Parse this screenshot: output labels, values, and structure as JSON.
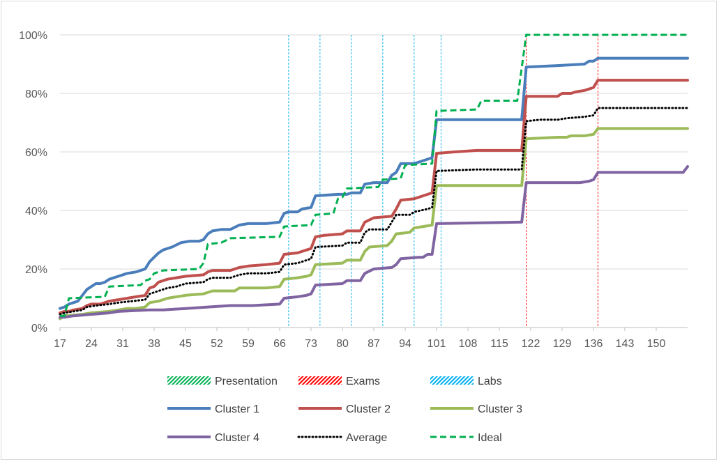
{
  "chart_data": {
    "type": "line",
    "title": "",
    "xlabel": "",
    "ylabel": "",
    "xlim": [
      17,
      157
    ],
    "ylim": [
      0,
      1
    ],
    "y_ticks": [
      "0%",
      "20%",
      "40%",
      "60%",
      "80%",
      "100%"
    ],
    "x_ticks": [
      "17",
      "24",
      "31",
      "38",
      "45",
      "52",
      "59",
      "66",
      "73",
      "80",
      "87",
      "94",
      "101",
      "108",
      "115",
      "122",
      "129",
      "136",
      "143",
      "150"
    ],
    "grid": "horizontal",
    "legend_position": "bottom",
    "markers": [
      {
        "name": "Presentation",
        "color": "#00b050",
        "positions": []
      },
      {
        "name": "Exams",
        "color": "#ff0000",
        "positions": [
          121,
          137
        ]
      },
      {
        "name": "Labs",
        "color": "#00b0f0",
        "positions": [
          68,
          75,
          82,
          89,
          96,
          102
        ]
      }
    ],
    "series": [
      {
        "name": "Cluster 1",
        "color": "#4a7ebb",
        "style": "solid",
        "points": [
          [
            17,
            0.065
          ],
          [
            18,
            0.07
          ],
          [
            19,
            0.08
          ],
          [
            20,
            0.085
          ],
          [
            21,
            0.09
          ],
          [
            22,
            0.11
          ],
          [
            23,
            0.13
          ],
          [
            24,
            0.14
          ],
          [
            25,
            0.15
          ],
          [
            26,
            0.15
          ],
          [
            27,
            0.155
          ],
          [
            28,
            0.165
          ],
          [
            30,
            0.175
          ],
          [
            32,
            0.185
          ],
          [
            34,
            0.19
          ],
          [
            36,
            0.2
          ],
          [
            37,
            0.225
          ],
          [
            38,
            0.24
          ],
          [
            39,
            0.255
          ],
          [
            40,
            0.265
          ],
          [
            42,
            0.275
          ],
          [
            44,
            0.29
          ],
          [
            46,
            0.295
          ],
          [
            48,
            0.295
          ],
          [
            49,
            0.3
          ],
          [
            50,
            0.32
          ],
          [
            51,
            0.33
          ],
          [
            53,
            0.335
          ],
          [
            55,
            0.335
          ],
          [
            57,
            0.35
          ],
          [
            59,
            0.355
          ],
          [
            63,
            0.355
          ],
          [
            66,
            0.36
          ],
          [
            67,
            0.39
          ],
          [
            68,
            0.395
          ],
          [
            70,
            0.395
          ],
          [
            71,
            0.405
          ],
          [
            73,
            0.41
          ],
          [
            74,
            0.45
          ],
          [
            79,
            0.455
          ],
          [
            81,
            0.455
          ],
          [
            82,
            0.46
          ],
          [
            84,
            0.46
          ],
          [
            85,
            0.49
          ],
          [
            87,
            0.495
          ],
          [
            90,
            0.495
          ],
          [
            91,
            0.52
          ],
          [
            92,
            0.53
          ],
          [
            93,
            0.56
          ],
          [
            96,
            0.56
          ],
          [
            98,
            0.57
          ],
          [
            99,
            0.575
          ],
          [
            100,
            0.58
          ],
          [
            101,
            0.71
          ],
          [
            120,
            0.71
          ],
          [
            121,
            0.89
          ],
          [
            128,
            0.895
          ],
          [
            134,
            0.9
          ],
          [
            135,
            0.91
          ],
          [
            136,
            0.91
          ],
          [
            137,
            0.92
          ],
          [
            157,
            0.92
          ]
        ]
      },
      {
        "name": "Cluster 2",
        "color": "#c0504d",
        "style": "solid",
        "points": [
          [
            17,
            0.05
          ],
          [
            18,
            0.055
          ],
          [
            19,
            0.055
          ],
          [
            20,
            0.06
          ],
          [
            22,
            0.065
          ],
          [
            23,
            0.075
          ],
          [
            24,
            0.08
          ],
          [
            26,
            0.08
          ],
          [
            27,
            0.085
          ],
          [
            28,
            0.09
          ],
          [
            30,
            0.095
          ],
          [
            32,
            0.1
          ],
          [
            34,
            0.105
          ],
          [
            36,
            0.11
          ],
          [
            37,
            0.135
          ],
          [
            38,
            0.14
          ],
          [
            39,
            0.155
          ],
          [
            41,
            0.165
          ],
          [
            43,
            0.17
          ],
          [
            45,
            0.175
          ],
          [
            49,
            0.18
          ],
          [
            50,
            0.19
          ],
          [
            51,
            0.195
          ],
          [
            55,
            0.195
          ],
          [
            56,
            0.2
          ],
          [
            57,
            0.205
          ],
          [
            59,
            0.21
          ],
          [
            63,
            0.215
          ],
          [
            66,
            0.22
          ],
          [
            67,
            0.25
          ],
          [
            70,
            0.255
          ],
          [
            72,
            0.265
          ],
          [
            73,
            0.27
          ],
          [
            74,
            0.31
          ],
          [
            76,
            0.315
          ],
          [
            80,
            0.32
          ],
          [
            81,
            0.33
          ],
          [
            84,
            0.33
          ],
          [
            85,
            0.36
          ],
          [
            87,
            0.375
          ],
          [
            91,
            0.38
          ],
          [
            92,
            0.405
          ],
          [
            93,
            0.435
          ],
          [
            96,
            0.44
          ],
          [
            98,
            0.45
          ],
          [
            99,
            0.455
          ],
          [
            100,
            0.46
          ],
          [
            101,
            0.595
          ],
          [
            105,
            0.6
          ],
          [
            110,
            0.605
          ],
          [
            120,
            0.605
          ],
          [
            121,
            0.79
          ],
          [
            128,
            0.79
          ],
          [
            129,
            0.8
          ],
          [
            131,
            0.8
          ],
          [
            132,
            0.805
          ],
          [
            134,
            0.81
          ],
          [
            136,
            0.82
          ],
          [
            137,
            0.845
          ],
          [
            157,
            0.845
          ]
        ]
      },
      {
        "name": "Cluster 3",
        "color": "#9bbb59",
        "style": "solid",
        "points": [
          [
            17,
            0.03
          ],
          [
            18,
            0.04
          ],
          [
            22,
            0.045
          ],
          [
            24,
            0.05
          ],
          [
            28,
            0.055
          ],
          [
            30,
            0.06
          ],
          [
            32,
            0.065
          ],
          [
            34,
            0.065
          ],
          [
            36,
            0.07
          ],
          [
            37,
            0.085
          ],
          [
            39,
            0.09
          ],
          [
            41,
            0.1
          ],
          [
            43,
            0.105
          ],
          [
            45,
            0.11
          ],
          [
            49,
            0.115
          ],
          [
            50,
            0.12
          ],
          [
            51,
            0.125
          ],
          [
            56,
            0.125
          ],
          [
            57,
            0.135
          ],
          [
            63,
            0.135
          ],
          [
            66,
            0.14
          ],
          [
            67,
            0.165
          ],
          [
            70,
            0.17
          ],
          [
            72,
            0.175
          ],
          [
            73,
            0.18
          ],
          [
            74,
            0.215
          ],
          [
            80,
            0.22
          ],
          [
            81,
            0.23
          ],
          [
            84,
            0.23
          ],
          [
            85,
            0.26
          ],
          [
            86,
            0.275
          ],
          [
            90,
            0.28
          ],
          [
            91,
            0.295
          ],
          [
            92,
            0.32
          ],
          [
            95,
            0.325
          ],
          [
            96,
            0.34
          ],
          [
            98,
            0.345
          ],
          [
            100,
            0.35
          ],
          [
            101,
            0.485
          ],
          [
            120,
            0.485
          ],
          [
            121,
            0.645
          ],
          [
            128,
            0.65
          ],
          [
            130,
            0.65
          ],
          [
            131,
            0.655
          ],
          [
            134,
            0.655
          ],
          [
            136,
            0.66
          ],
          [
            137,
            0.68
          ],
          [
            157,
            0.68
          ]
        ]
      },
      {
        "name": "Cluster 4",
        "color": "#8064a2",
        "style": "solid",
        "points": [
          [
            17,
            0.035
          ],
          [
            18,
            0.035
          ],
          [
            20,
            0.04
          ],
          [
            24,
            0.045
          ],
          [
            28,
            0.05
          ],
          [
            30,
            0.055
          ],
          [
            37,
            0.06
          ],
          [
            40,
            0.06
          ],
          [
            45,
            0.065
          ],
          [
            50,
            0.07
          ],
          [
            55,
            0.075
          ],
          [
            60,
            0.075
          ],
          [
            66,
            0.08
          ],
          [
            67,
            0.1
          ],
          [
            70,
            0.105
          ],
          [
            72,
            0.11
          ],
          [
            73,
            0.115
          ],
          [
            74,
            0.145
          ],
          [
            80,
            0.15
          ],
          [
            81,
            0.16
          ],
          [
            84,
            0.16
          ],
          [
            85,
            0.185
          ],
          [
            87,
            0.2
          ],
          [
            91,
            0.205
          ],
          [
            92,
            0.215
          ],
          [
            93,
            0.235
          ],
          [
            97,
            0.24
          ],
          [
            98,
            0.24
          ],
          [
            99,
            0.25
          ],
          [
            100,
            0.25
          ],
          [
            101,
            0.355
          ],
          [
            120,
            0.36
          ],
          [
            121,
            0.495
          ],
          [
            133,
            0.495
          ],
          [
            135,
            0.5
          ],
          [
            136,
            0.505
          ],
          [
            137,
            0.53
          ],
          [
            156,
            0.53
          ],
          [
            157,
            0.55
          ]
        ]
      },
      {
        "name": "Average",
        "color": "#000000",
        "style": "dotted",
        "points": [
          [
            17,
            0.045
          ],
          [
            18,
            0.05
          ],
          [
            20,
            0.055
          ],
          [
            22,
            0.06
          ],
          [
            23,
            0.07
          ],
          [
            25,
            0.075
          ],
          [
            28,
            0.08
          ],
          [
            30,
            0.085
          ],
          [
            33,
            0.09
          ],
          [
            36,
            0.095
          ],
          [
            37,
            0.115
          ],
          [
            39,
            0.125
          ],
          [
            41,
            0.135
          ],
          [
            43,
            0.14
          ],
          [
            45,
            0.15
          ],
          [
            49,
            0.155
          ],
          [
            50,
            0.165
          ],
          [
            51,
            0.17
          ],
          [
            55,
            0.17
          ],
          [
            57,
            0.18
          ],
          [
            59,
            0.185
          ],
          [
            63,
            0.185
          ],
          [
            66,
            0.19
          ],
          [
            67,
            0.215
          ],
          [
            70,
            0.22
          ],
          [
            73,
            0.235
          ],
          [
            74,
            0.275
          ],
          [
            80,
            0.28
          ],
          [
            81,
            0.29
          ],
          [
            84,
            0.29
          ],
          [
            85,
            0.325
          ],
          [
            86,
            0.335
          ],
          [
            90,
            0.335
          ],
          [
            91,
            0.36
          ],
          [
            92,
            0.385
          ],
          [
            95,
            0.385
          ],
          [
            96,
            0.395
          ],
          [
            99,
            0.405
          ],
          [
            100,
            0.41
          ],
          [
            101,
            0.535
          ],
          [
            110,
            0.54
          ],
          [
            120,
            0.54
          ],
          [
            121,
            0.705
          ],
          [
            124,
            0.71
          ],
          [
            128,
            0.71
          ],
          [
            130,
            0.715
          ],
          [
            134,
            0.72
          ],
          [
            136,
            0.725
          ],
          [
            137,
            0.75
          ],
          [
            157,
            0.75
          ]
        ]
      },
      {
        "name": "Ideal",
        "color": "#00b050",
        "style": "dashed",
        "points": [
          [
            17,
            0.04
          ],
          [
            18,
            0.04
          ],
          [
            19,
            0.1
          ],
          [
            27,
            0.105
          ],
          [
            28,
            0.14
          ],
          [
            35,
            0.145
          ],
          [
            36,
            0.16
          ],
          [
            37,
            0.165
          ],
          [
            38,
            0.185
          ],
          [
            40,
            0.195
          ],
          [
            48,
            0.2
          ],
          [
            49,
            0.22
          ],
          [
            50,
            0.285
          ],
          [
            53,
            0.29
          ],
          [
            55,
            0.305
          ],
          [
            66,
            0.31
          ],
          [
            67,
            0.345
          ],
          [
            73,
            0.35
          ],
          [
            74,
            0.385
          ],
          [
            78,
            0.39
          ],
          [
            79,
            0.44
          ],
          [
            80,
            0.445
          ],
          [
            81,
            0.475
          ],
          [
            88,
            0.48
          ],
          [
            89,
            0.505
          ],
          [
            93,
            0.51
          ],
          [
            94,
            0.555
          ],
          [
            100,
            0.56
          ],
          [
            101,
            0.74
          ],
          [
            110,
            0.745
          ],
          [
            111,
            0.775
          ],
          [
            119,
            0.775
          ],
          [
            121,
            1.0
          ],
          [
            157,
            1.0
          ]
        ]
      }
    ]
  }
}
